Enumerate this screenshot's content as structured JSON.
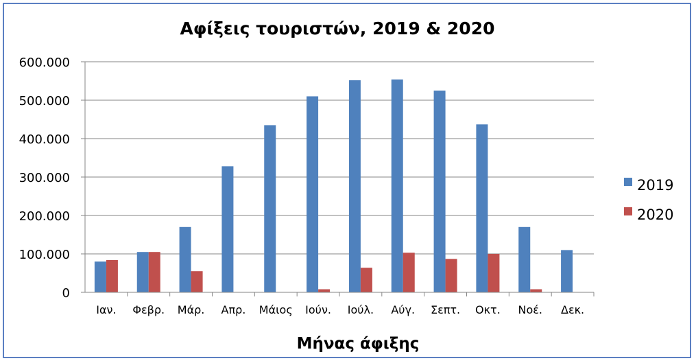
{
  "chart_data": {
    "type": "bar",
    "title": "Αφίξεις τουριστών, 2019 & 2020",
    "xlabel": "Μήνας άφιξης",
    "ylabel": "",
    "ylim": [
      0,
      600000
    ],
    "yticks": [
      0,
      100000,
      200000,
      300000,
      400000,
      500000,
      600000
    ],
    "ytick_labels": [
      "0",
      "100.000",
      "200.000",
      "300.000",
      "400.000",
      "500.000",
      "600.000"
    ],
    "categories": [
      "Ιαν.",
      "Φεβρ.",
      "Μάρ.",
      "Απρ.",
      "Μάιος",
      "Ιούν.",
      "Ιούλ.",
      "Αύγ.",
      "Σεπτ.",
      "Οκτ.",
      "Νοέ.",
      "Δεκ."
    ],
    "series": [
      {
        "name": "2019",
        "color": "#4f81bd",
        "values": [
          80000,
          105000,
          170000,
          328000,
          435000,
          510000,
          552000,
          554000,
          525000,
          437000,
          170000,
          110000
        ]
      },
      {
        "name": "2020",
        "color": "#c0504d",
        "values": [
          84000,
          105000,
          55000,
          0,
          0,
          8000,
          64000,
          103000,
          87000,
          100000,
          8000,
          0
        ]
      }
    ],
    "grid": true,
    "legend": "right"
  }
}
